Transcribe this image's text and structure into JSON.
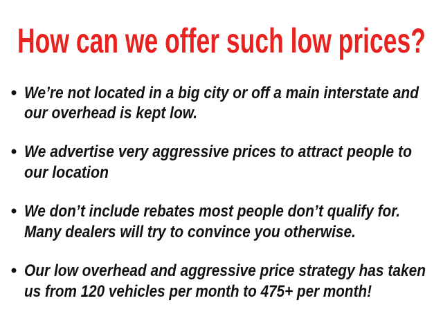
{
  "title": "How can we offer such low prices?",
  "bullets": [
    {
      "lines": [
        "We’re not located in a big city or off a main interstate and",
        "our overhead is kept low."
      ]
    },
    {
      "lines": [
        "We advertise very aggressive prices to attract people to",
        "our location"
      ]
    },
    {
      "lines": [
        "We don’t include rebates most people don’t qualify for.",
        "Many dealers will try to convince you otherwise."
      ]
    },
    {
      "lines": [
        "Our low overhead and aggressive price strategy has taken",
        "us from 120 vehicles per month to 475+ per month!"
      ]
    }
  ]
}
